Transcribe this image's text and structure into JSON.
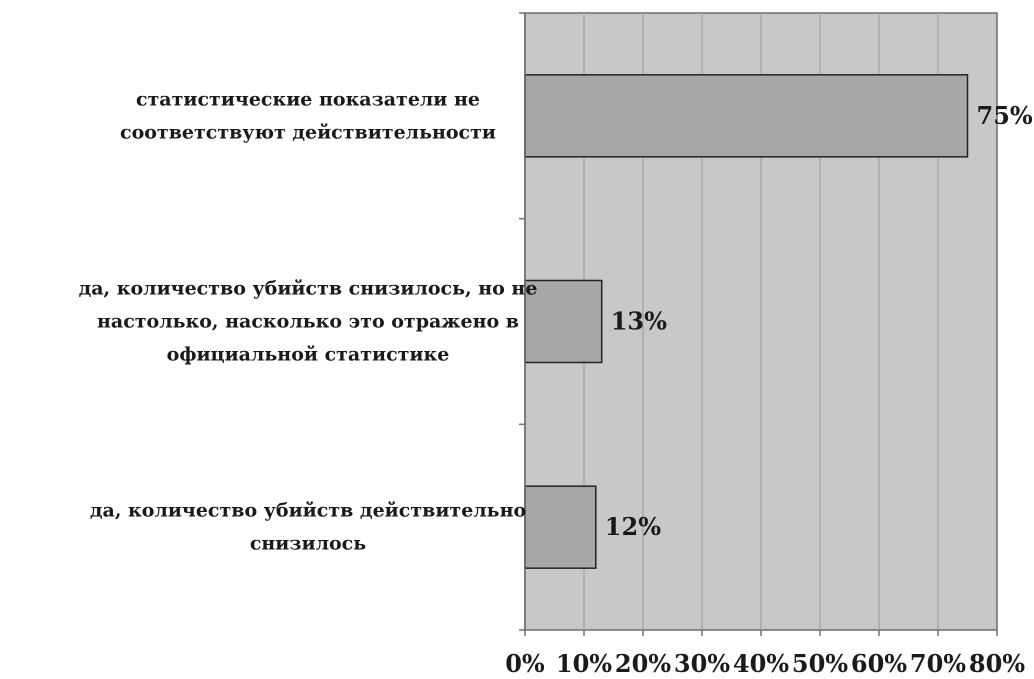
{
  "chart_data": {
    "type": "bar",
    "orientation": "horizontal",
    "categories": [
      "статистические показатели не соответствуют действительности",
      "да, количество убийств снизилось, но не настолько, насколько это отражено в официальной статистике",
      "да, количество убийств действительно снизилось"
    ],
    "category_lines": [
      [
        "статистические показатели не",
        "соответствуют действительности"
      ],
      [
        "да, количество убийств снизилось, но не",
        "настолько, насколько это отражено в",
        "официальной статистике"
      ],
      [
        "да, количество убийств действительно",
        "снизилось"
      ]
    ],
    "values": [
      75,
      13,
      12
    ],
    "value_labels": [
      "75%",
      "13%",
      "12%"
    ],
    "xlim": [
      0,
      80
    ],
    "x_ticks": [
      0,
      10,
      20,
      30,
      40,
      50,
      60,
      70,
      80
    ],
    "x_tick_labels": [
      "0%",
      "10%",
      "20%",
      "30%",
      "40%",
      "50%",
      "60%",
      "70%",
      "80%"
    ],
    "grid": true,
    "legend": "none",
    "colors": {
      "plot_background": "#c8c8c8",
      "bar_fill": "#a7a7a7",
      "bar_stroke": "#222222",
      "gridline": "#9a9a9a",
      "axis": "#6f6f6f"
    }
  }
}
